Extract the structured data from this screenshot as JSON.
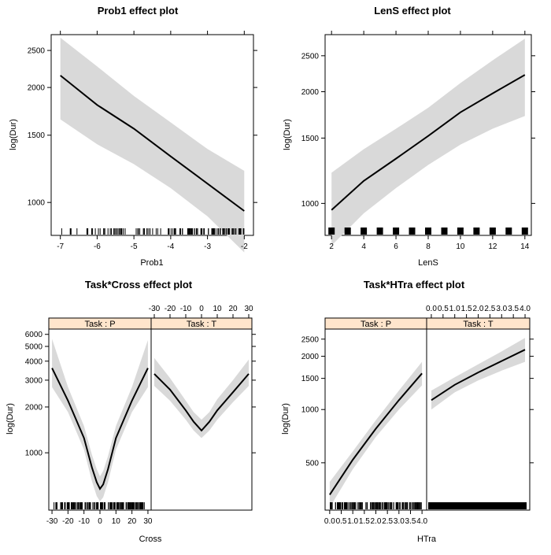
{
  "chart_data": [
    {
      "type": "line",
      "title": "Prob1 effect plot",
      "xlabel": "Prob1",
      "ylabel": "log(Dur)",
      "xlim": [
        -7,
        -2
      ],
      "x_ticks": [
        "-7",
        "-6",
        "-5",
        "-4",
        "-3",
        "-2"
      ],
      "y_ticks": [
        "1000",
        "1500",
        "2000",
        "2500"
      ],
      "y_scale": "log",
      "band_color": "#d9d9d9",
      "line_color": "#000000",
      "series": [
        {
          "x": [
            -7.0,
            -6.0,
            -5.0,
            -4.0,
            -3.0,
            -2.0
          ],
          "values": [
            2150,
            1800,
            1560,
            1320,
            1120,
            950
          ],
          "lower": [
            1650,
            1420,
            1260,
            1090,
            920,
            740
          ],
          "upper": [
            2700,
            2270,
            1900,
            1620,
            1380,
            1210
          ]
        }
      ]
    },
    {
      "type": "line",
      "title": "LenS effect plot",
      "xlabel": "LenS",
      "ylabel": "log(Dur)",
      "xlim": [
        2,
        14
      ],
      "x_ticks": [
        "2",
        "4",
        "6",
        "8",
        "10",
        "12",
        "14"
      ],
      "y_ticks": [
        "1000",
        "1500",
        "2000",
        "2500"
      ],
      "y_scale": "log",
      "band_color": "#d9d9d9",
      "line_color": "#000000",
      "series": [
        {
          "x": [
            2,
            4,
            6,
            8,
            10,
            12,
            14
          ],
          "values": [
            960,
            1150,
            1320,
            1520,
            1760,
            1980,
            2220
          ],
          "lower": [
            770,
            940,
            1100,
            1270,
            1440,
            1590,
            1720
          ],
          "upper": [
            1210,
            1400,
            1590,
            1810,
            2110,
            2430,
            2780
          ]
        }
      ]
    },
    {
      "type": "line",
      "title": "Task*Cross effect plot",
      "xlabel": "Cross",
      "ylabel": "log(Dur)",
      "xlim": [
        -30,
        30
      ],
      "x_ticks": [
        "-30",
        "-20",
        "-10",
        "0",
        "10",
        "20",
        "30"
      ],
      "y_ticks": [
        "1000",
        "2000",
        "3000",
        "4000",
        "5000",
        "6000"
      ],
      "y_scale": "log",
      "panels": [
        "Task : P",
        "Task : T"
      ],
      "strip_color": "#ffe5cc",
      "band_color": "#d9d9d9",
      "line_color": "#000000",
      "series": [
        {
          "name": "Task : P",
          "x": [
            -30,
            -20,
            -10,
            -5,
            -2,
            0,
            2,
            5,
            10,
            20,
            30
          ],
          "values": [
            3600,
            2200,
            1250,
            800,
            640,
            580,
            620,
            780,
            1250,
            2200,
            3600
          ],
          "lower": [
            2700,
            1850,
            1050,
            650,
            520,
            480,
            510,
            640,
            1050,
            1850,
            2700
          ],
          "upper": [
            5600,
            2700,
            1500,
            970,
            780,
            700,
            760,
            950,
            1500,
            2700,
            5500
          ]
        },
        {
          "name": "Task : T",
          "x": [
            -30,
            -20,
            -10,
            -5,
            0,
            5,
            10,
            20,
            30
          ],
          "values": [
            3300,
            2600,
            1900,
            1600,
            1400,
            1600,
            1900,
            2500,
            3300
          ],
          "lower": [
            2750,
            2200,
            1650,
            1400,
            1250,
            1400,
            1650,
            2150,
            2750
          ],
          "upper": [
            4200,
            3100,
            2200,
            1850,
            1650,
            1850,
            2250,
            3000,
            4100
          ]
        }
      ]
    },
    {
      "type": "line",
      "title": "Task*HTra effect plot",
      "xlabel": "HTra",
      "ylabel": "log(Dur)",
      "xlim": [
        0.0,
        4.0
      ],
      "x_ticks": [
        "0.0",
        "0.5",
        "1.0",
        "1.5",
        "2.0",
        "2.5",
        "3.0",
        "3.5",
        "4.0"
      ],
      "y_ticks": [
        "500",
        "1000",
        "1500",
        "2000",
        "2500"
      ],
      "y_scale": "log",
      "panels": [
        "Task : P",
        "Task : T"
      ],
      "strip_color": "#ffe5cc",
      "band_color": "#d9d9d9",
      "line_color": "#000000",
      "series": [
        {
          "name": "Task : P",
          "x": [
            0.0,
            1.0,
            2.0,
            3.0,
            4.0
          ],
          "values": [
            330,
            520,
            780,
            1130,
            1600
          ],
          "lower": [
            280,
            460,
            700,
            1000,
            1370
          ],
          "upper": [
            390,
            580,
            870,
            1280,
            1860
          ]
        },
        {
          "name": "Task : T",
          "x": [
            0.0,
            1.0,
            2.0,
            3.0,
            4.0
          ],
          "values": [
            1130,
            1380,
            1620,
            1880,
            2180
          ],
          "lower": [
            1000,
            1250,
            1460,
            1660,
            1860
          ],
          "upper": [
            1280,
            1520,
            1800,
            2130,
            2540
          ]
        }
      ]
    }
  ]
}
